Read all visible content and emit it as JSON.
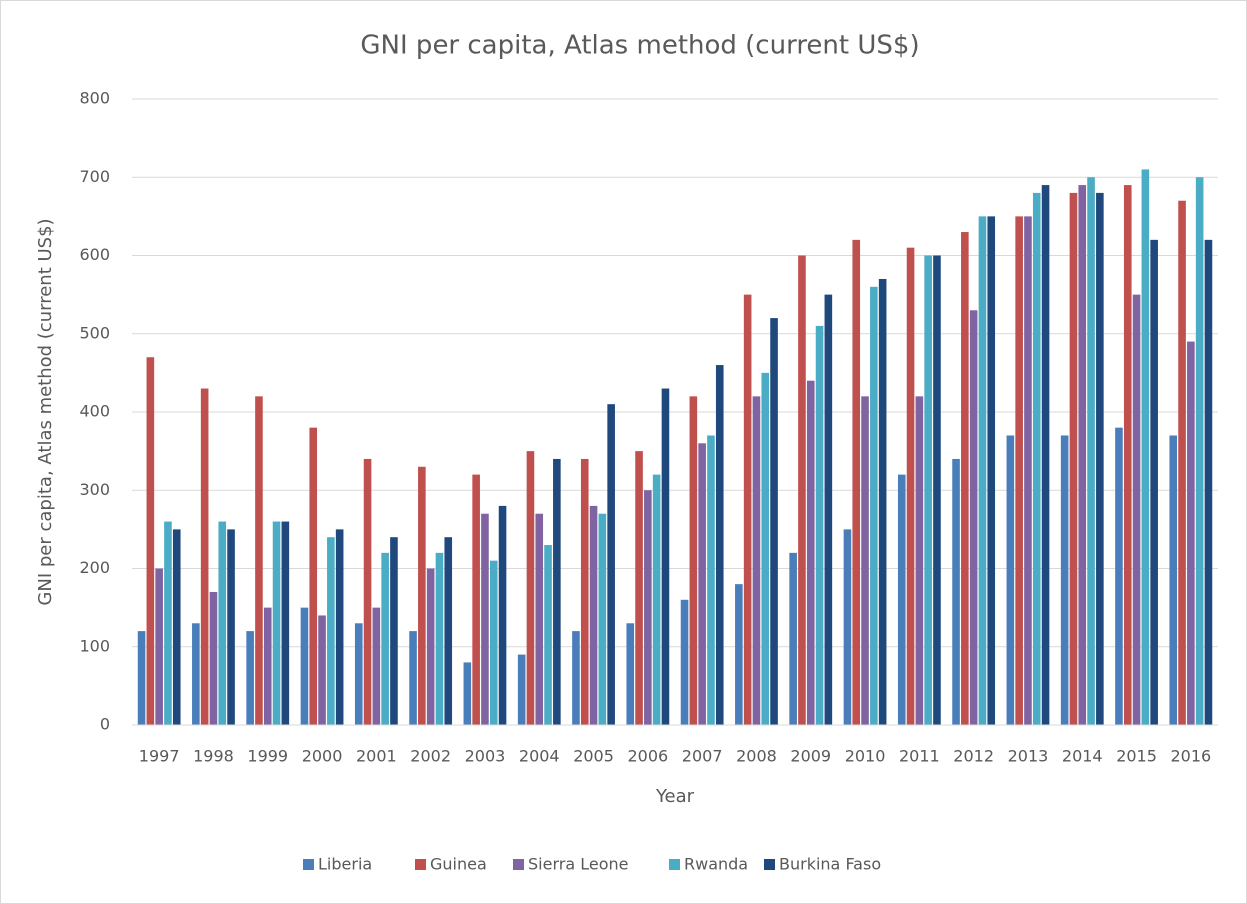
{
  "chart_data": {
    "type": "bar",
    "title": "GNI per capita, Atlas method (current US$)",
    "x_label": "Year",
    "y_label": "GNI per capita, Atlas method (current US$)",
    "categories": [
      "1997",
      "1998",
      "1999",
      "2000",
      "2001",
      "2002",
      "2003",
      "2004",
      "2005",
      "2006",
      "2007",
      "2008",
      "2009",
      "2010",
      "2011",
      "2012",
      "2013",
      "2014",
      "2015",
      "2016"
    ],
    "series": [
      {
        "name": "Liberia",
        "color": "#4a7ebb",
        "values": [
          120,
          130,
          120,
          150,
          130,
          120,
          80,
          90,
          120,
          130,
          160,
          180,
          220,
          250,
          320,
          340,
          370,
          370,
          380,
          370
        ]
      },
      {
        "name": "Guinea",
        "color": "#c0504d",
        "values": [
          470,
          430,
          420,
          380,
          340,
          330,
          320,
          350,
          340,
          350,
          420,
          550,
          600,
          620,
          610,
          630,
          650,
          680,
          690,
          670
        ]
      },
      {
        "name": "Sierra Leone",
        "color": "#8064a2",
        "values": [
          200,
          170,
          150,
          140,
          150,
          200,
          270,
          270,
          280,
          300,
          360,
          420,
          440,
          420,
          420,
          530,
          650,
          690,
          550,
          490
        ]
      },
      {
        "name": "Rwanda",
        "color": "#4bacc6",
        "values": [
          260,
          260,
          260,
          240,
          220,
          220,
          210,
          230,
          270,
          320,
          370,
          450,
          510,
          560,
          600,
          650,
          680,
          700,
          710,
          700
        ]
      },
      {
        "name": "Burkina Faso",
        "color": "#1f497d",
        "values": [
          250,
          250,
          260,
          250,
          240,
          240,
          280,
          340,
          410,
          430,
          460,
          520,
          550,
          570,
          600,
          650,
          690,
          680,
          620,
          620
        ]
      }
    ],
    "ylim": [
      0,
      800
    ],
    "yticks": [
      0,
      100,
      200,
      300,
      400,
      500,
      600,
      700,
      800
    ],
    "grid": true,
    "legend": "bottom"
  }
}
